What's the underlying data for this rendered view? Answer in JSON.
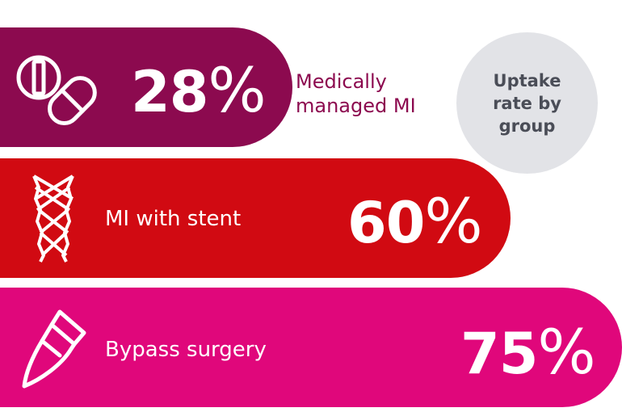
{
  "chart_data": {
    "type": "bar",
    "orientation": "horizontal",
    "title": "",
    "categories": [
      "Medically managed MI",
      "MI with stent",
      "Bypass surgery"
    ],
    "values": [
      28,
      60,
      75
    ],
    "value_labels": [
      "28",
      "60",
      "75"
    ],
    "unit": "%",
    "badge": "Uptake rate by group",
    "colors": [
      "#8c0a4f",
      "#d10a12",
      "#e0077b"
    ],
    "icons": [
      "pills-icon",
      "stent-icon",
      "scalpel-icon"
    ]
  }
}
